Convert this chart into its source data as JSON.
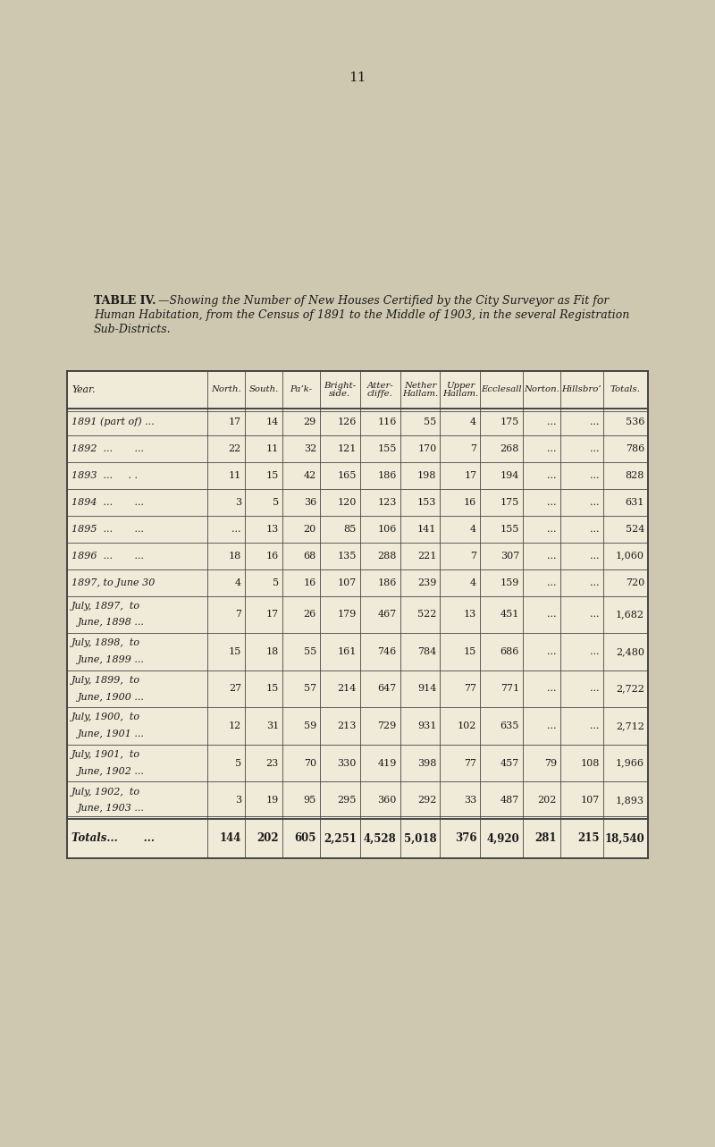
{
  "page_number": "11",
  "title_bold": "TABLE IV.",
  "title_line1_italic": "—Showing the Number of New Houses Certified by the City Surveyor as Fit for",
  "title_line2_italic": "Human Habitation, from the Census of 1891 to the Middle of 1903, in the several Registration",
  "title_line3_italic": "Sub-Districts.",
  "columns": [
    "Year.",
    "North.",
    "South.",
    "Paʼk-",
    "Bright-\nside.",
    "Atter-\ncliffe.",
    "Nether\nHallam.",
    "Upper\nHallam.",
    "Ecclesall",
    "Norton.",
    "Hillsbro’",
    "Totals."
  ],
  "col_widths_rel": [
    2.8,
    0.75,
    0.75,
    0.75,
    0.8,
    0.8,
    0.8,
    0.8,
    0.85,
    0.75,
    0.85,
    0.9
  ],
  "rows": [
    [
      "1891 (part of) ...",
      "17",
      "14",
      "29",
      "126",
      "116",
      "55",
      "4",
      "175",
      "...",
      "...",
      "536"
    ],
    [
      "1892  ...       ...",
      "22",
      "11",
      "32",
      "121",
      "155",
      "170",
      "7",
      "268",
      "...",
      "...",
      "786"
    ],
    [
      "1893  ...     . .",
      "11",
      "15",
      "42",
      "165",
      "186",
      "198",
      "17",
      "194",
      "...",
      "...",
      "828"
    ],
    [
      "1894  ...       ...",
      "3",
      "5",
      "36",
      "120",
      "123",
      "153",
      "16",
      "175",
      "...",
      "...",
      "631"
    ],
    [
      "1895  ...       ...",
      "...",
      "13",
      "20",
      "85",
      "106",
      "141",
      "4",
      "155",
      "...",
      "...",
      "524"
    ],
    [
      "1896  ...       ...",
      "18",
      "16",
      "68",
      "135",
      "288",
      "221",
      "7",
      "307",
      "...",
      "...",
      "1,060"
    ],
    [
      "1897, to June 30",
      "4",
      "5",
      "16",
      "107",
      "186",
      "239",
      "4",
      "159",
      "...",
      "...",
      "720"
    ],
    [
      "July, 1897,  to\nJune, 1898 ...",
      "7",
      "17",
      "26",
      "179",
      "467",
      "522",
      "13",
      "451",
      "...",
      "...",
      "1,682"
    ],
    [
      "July, 1898,  to\nJune, 1899 ...",
      "15",
      "18",
      "55",
      "161",
      "746",
      "784",
      "15",
      "686",
      "...",
      "...",
      "2,480"
    ],
    [
      "July, 1899,  to\nJune, 1900 ...",
      "27",
      "15",
      "57",
      "214",
      "647",
      "914",
      "77",
      "771",
      "...",
      "...",
      "2,722"
    ],
    [
      "July, 1900,  to\nJune, 1901 ...",
      "12",
      "31",
      "59",
      "213",
      "729",
      "931",
      "102",
      "635",
      "...",
      "...",
      "2,712"
    ],
    [
      "July, 1901,  to\nJune, 1902 ...",
      "5",
      "23",
      "70",
      "330",
      "419",
      "398",
      "77",
      "457",
      "79",
      "108",
      "1,966"
    ],
    [
      "July, 1902,  to\nJune, 1903 ...",
      "3",
      "19",
      "95",
      "295",
      "360",
      "292",
      "33",
      "487",
      "202",
      "107",
      "1,893"
    ]
  ],
  "totals_row": [
    "Totals...       ...",
    "144",
    "202",
    "605",
    "2,251",
    "4,528",
    "5,018",
    "376",
    "4,920",
    "281",
    "215",
    "18,540"
  ],
  "bg_color": "#cfc8b0",
  "table_bg": "#f0ead8",
  "text_color": "#1a1a1a",
  "line_color": "#444444",
  "page_num_fontsize": 11,
  "title_fontsize": 9.0,
  "header_fontsize": 7.8,
  "cell_fontsize": 8.0,
  "totals_fontsize": 8.5
}
